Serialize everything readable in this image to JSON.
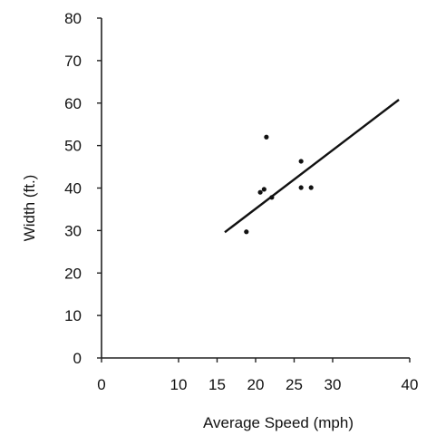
{
  "chart_data": {
    "type": "scatter",
    "title": "",
    "xlabel": "Average Speed (mph)",
    "ylabel": "Width (ft.)",
    "xlim": [
      0,
      40
    ],
    "ylim": [
      0,
      80
    ],
    "xticks": [
      0,
      10,
      15,
      20,
      25,
      30,
      40
    ],
    "yticks": [
      0,
      10,
      20,
      30,
      40,
      50,
      60,
      70,
      80
    ],
    "grid": false,
    "points": [
      {
        "x": 18.8,
        "y": 29.7
      },
      {
        "x": 20.6,
        "y": 39.0
      },
      {
        "x": 21.1,
        "y": 39.7
      },
      {
        "x": 21.4,
        "y": 52.0
      },
      {
        "x": 22.1,
        "y": 37.8
      },
      {
        "x": 25.9,
        "y": 46.3
      },
      {
        "x": 25.9,
        "y": 40.1
      },
      {
        "x": 27.2,
        "y": 40.1
      }
    ],
    "trendline": {
      "x": [
        16.0,
        38.6
      ],
      "y": [
        29.6,
        60.8
      ]
    },
    "colors": {
      "points": "#111111",
      "line": "#111111",
      "axes": "#222222"
    }
  }
}
